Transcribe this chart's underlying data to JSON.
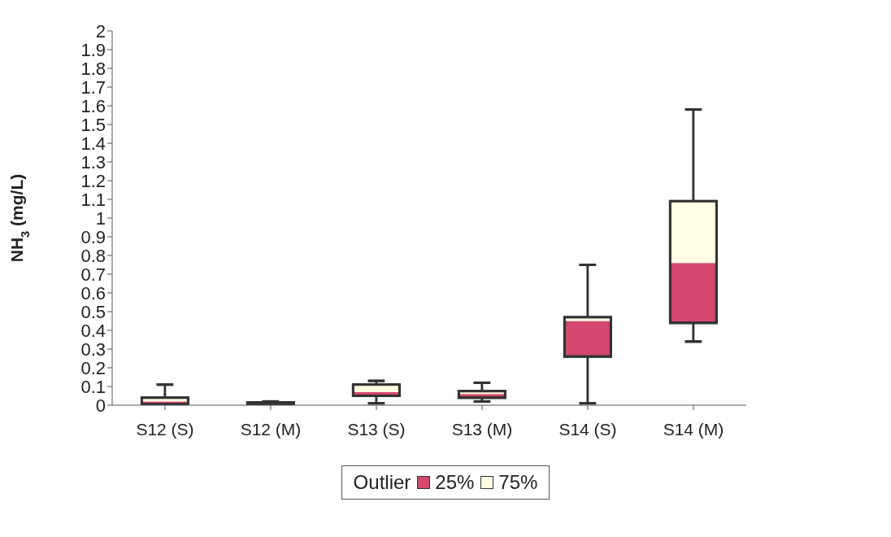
{
  "chart_data": {
    "type": "box",
    "ylabel": "NH$_{3}$ (mg/L)",
    "categories": [
      "S12 (S)",
      "S12 (M)",
      "S13 (S)",
      "S13 (M)",
      "S14 (S)",
      "S14 (M)"
    ],
    "series": [
      {
        "name": "Outlier",
        "type": "scatter",
        "values": [
          null,
          null,
          null,
          null,
          null,
          null
        ]
      },
      {
        "name": "25%",
        "type": "box",
        "color": "#d4476e",
        "boxes": [
          {
            "low": 0,
            "q1": 0.005,
            "median": 0.02,
            "q3": 0.04,
            "high": 0.11
          },
          {
            "low": 0,
            "q1": 0.005,
            "median": 0.01,
            "q3": 0.015,
            "high": 0.02
          },
          {
            "low": 0.01,
            "q1": 0.05,
            "median": 0.07,
            "q3": 0.11,
            "high": 0.13
          },
          {
            "low": 0.02,
            "q1": 0.04,
            "median": 0.06,
            "q3": 0.075,
            "high": 0.12
          },
          {
            "low": 0.01,
            "q1": 0.26,
            "median": 0.45,
            "q3": 0.47,
            "high": 0.75
          },
          {
            "low": 0.34,
            "q1": 0.44,
            "median": 0.76,
            "q3": 1.09,
            "high": 1.58
          }
        ]
      },
      {
        "name": "75%",
        "type": "box",
        "color": "#fffde4",
        "boxes": [
          {
            "low": 0,
            "q1": 0.005,
            "median": 0.02,
            "q3": 0.04,
            "high": 0.11
          },
          {
            "low": 0,
            "q1": 0.005,
            "median": 0.01,
            "q3": 0.015,
            "high": 0.02
          },
          {
            "low": 0.01,
            "q1": 0.05,
            "median": 0.07,
            "q3": 0.11,
            "high": 0.13
          },
          {
            "low": 0.02,
            "q1": 0.04,
            "median": 0.06,
            "q3": 0.075,
            "high": 0.12
          },
          {
            "low": 0.01,
            "q1": 0.26,
            "median": 0.45,
            "q3": 0.47,
            "high": 0.75
          },
          {
            "low": 0.34,
            "q1": 0.44,
            "median": 0.76,
            "q3": 1.09,
            "high": 1.58
          }
        ]
      }
    ],
    "ylim": [
      0,
      2
    ],
    "yticks": [
      0,
      0.1,
      0.2,
      0.3,
      0.4,
      0.5,
      0.6,
      0.7,
      0.8,
      0.9,
      1,
      1.1,
      1.2,
      1.3,
      1.4,
      1.5,
      1.6,
      1.7,
      1.8,
      1.9,
      2
    ],
    "grid": false,
    "legend": "bottom"
  }
}
